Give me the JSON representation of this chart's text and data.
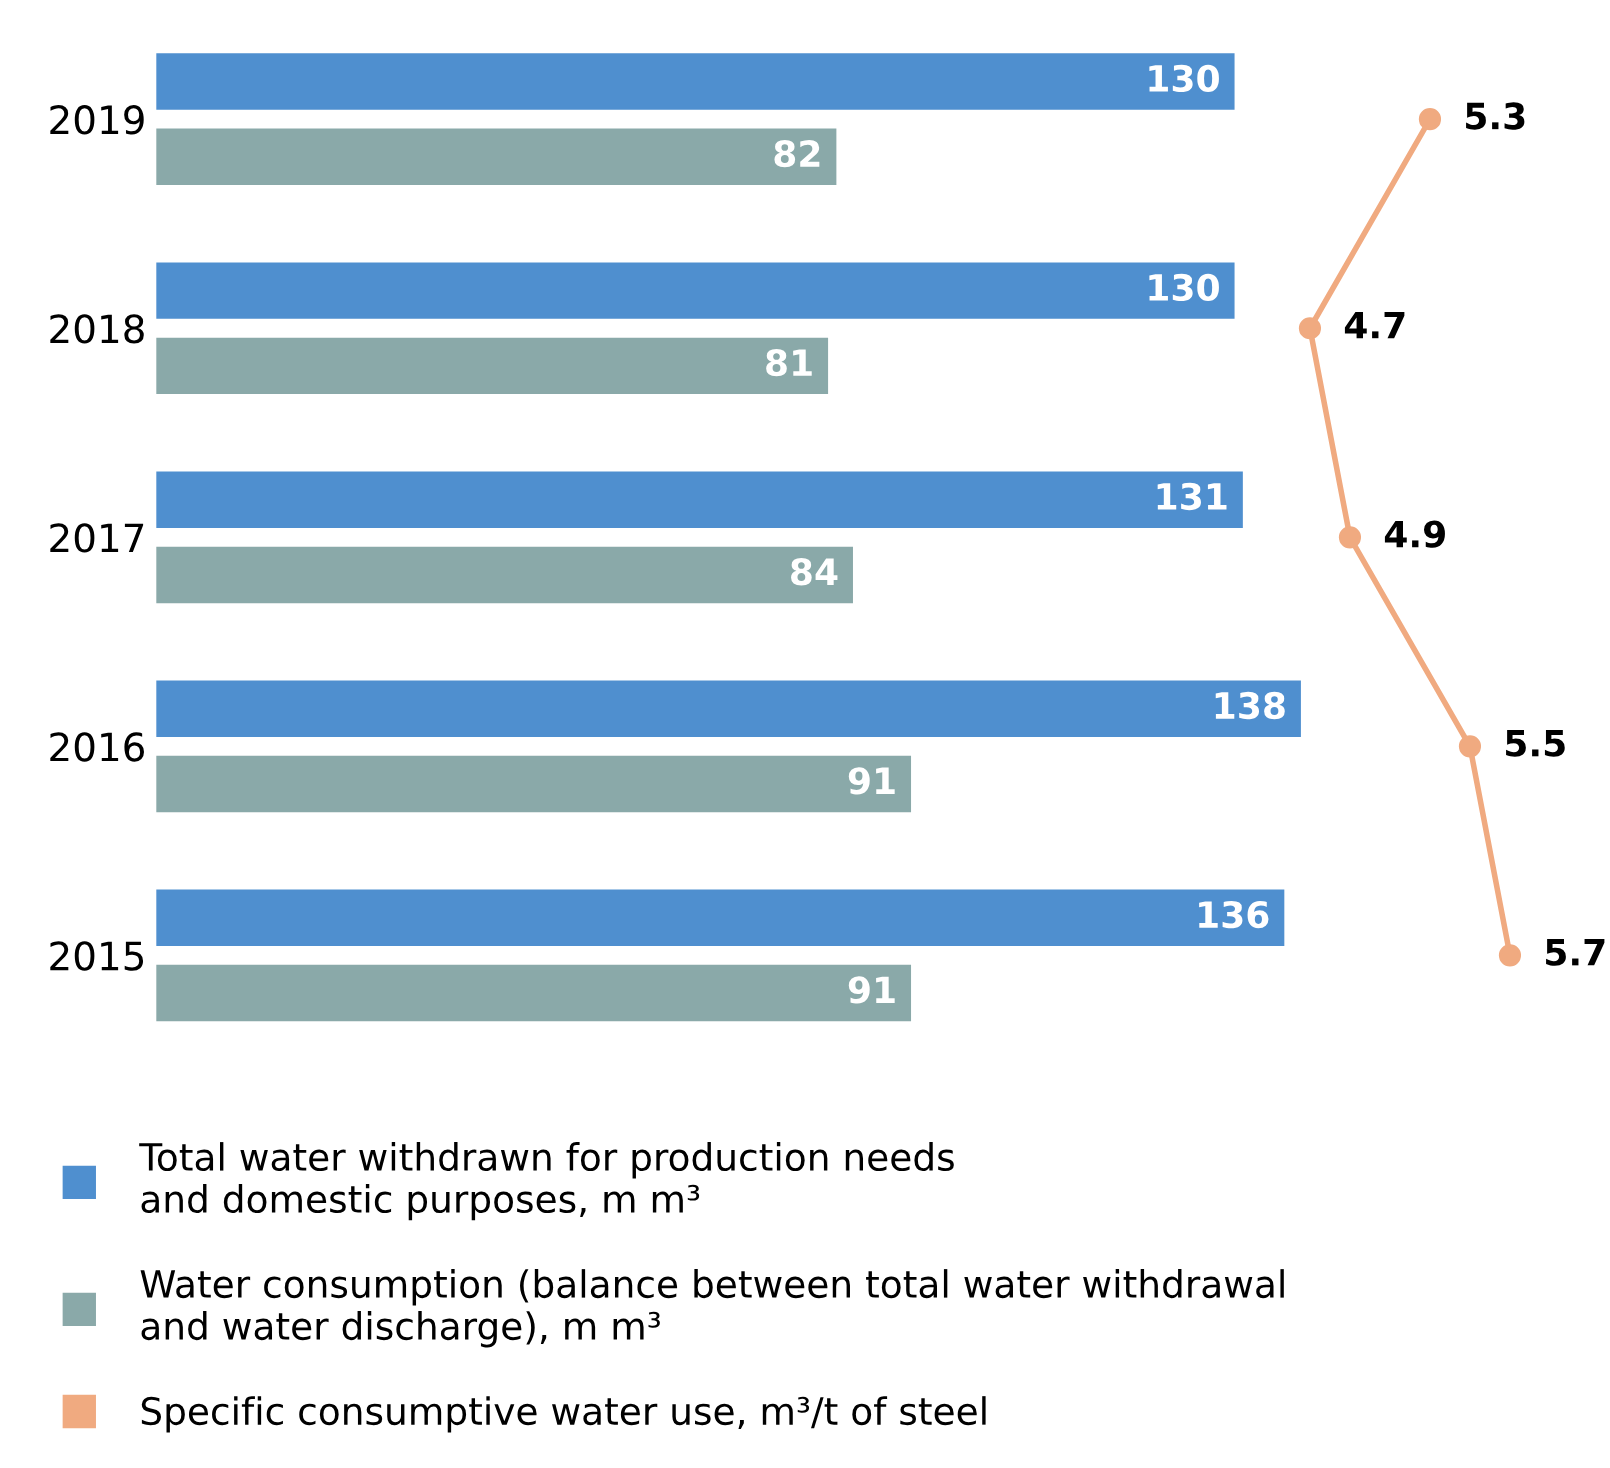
{
  "chart_data": [
    {
      "type": "bar",
      "orientation": "horizontal",
      "categories": [
        "2019",
        "2018",
        "2017",
        "2016",
        "2015"
      ],
      "series": [
        {
          "name": "Total water withdrawn for production needs\nand domestic purposes, m m³",
          "color": "#4f8fcf",
          "values": [
            130,
            130,
            131,
            138,
            136
          ]
        },
        {
          "name": "Water consumption (balance between total water withdrawal\nand water discharge), m m³",
          "color": "#8aa9a9",
          "values": [
            82,
            81,
            84,
            91,
            91
          ]
        }
      ],
      "data_labels": true,
      "legend": "bottom",
      "grid": false
    },
    {
      "type": "line",
      "orientation": "horizontal",
      "categories": [
        null,
        null,
        null,
        null,
        null
      ],
      "series": [
        {
          "name": "Specific consumptive water use, m³/t of steel",
          "color": "#f0aa80",
          "values": [
            5.3,
            4.7,
            4.9,
            5.5,
            5.7
          ]
        }
      ],
      "data_labels": true,
      "marker": "circle",
      "legend": "bottom",
      "grid": false
    }
  ]
}
